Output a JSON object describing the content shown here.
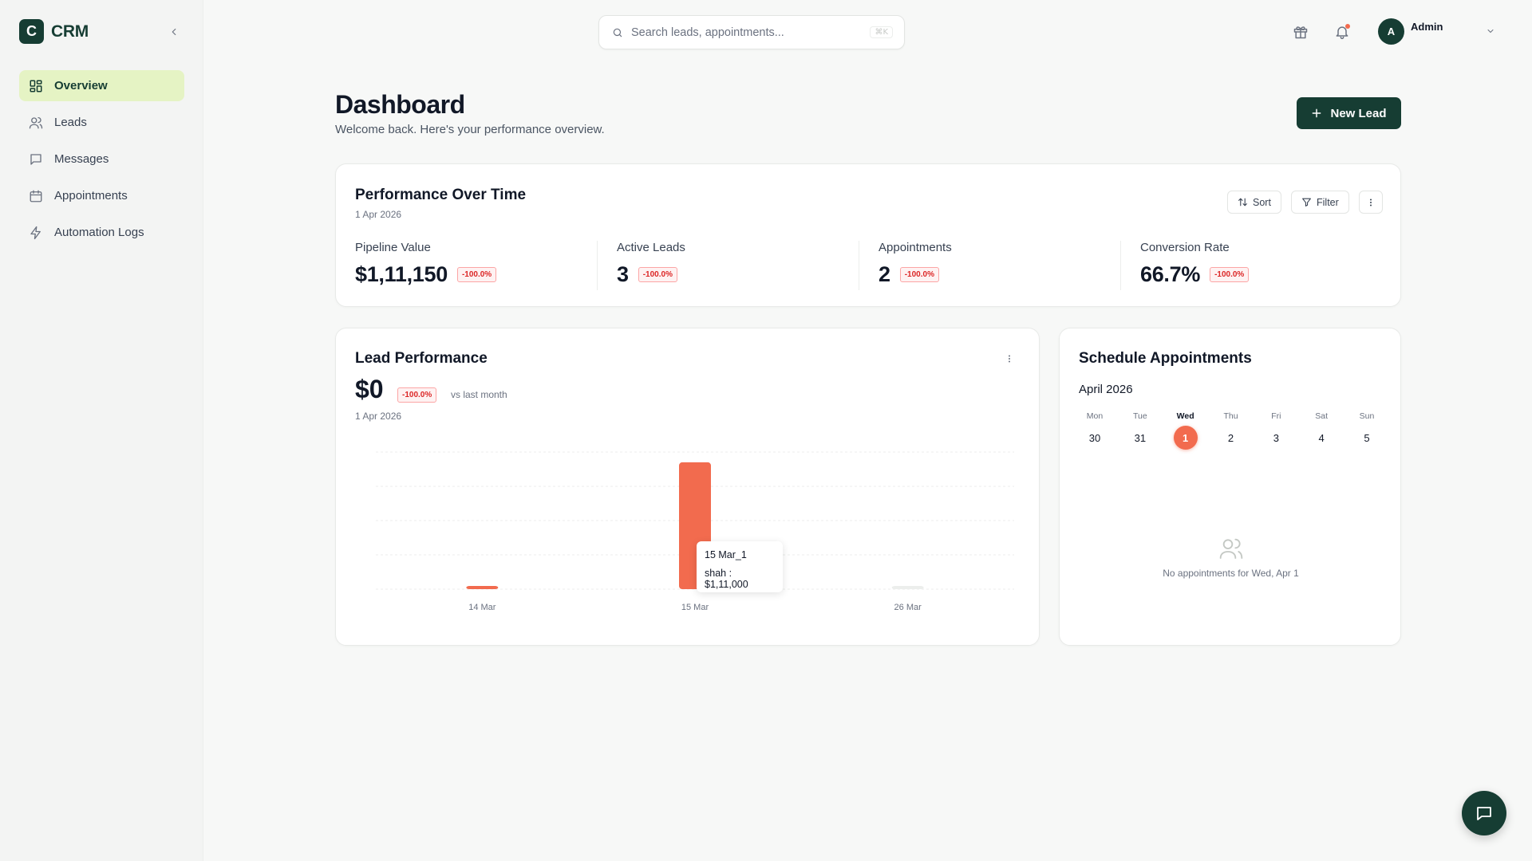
{
  "app": {
    "logo_letter": "C",
    "name": "CRM"
  },
  "sidebar": {
    "items": [
      {
        "label": "Overview",
        "icon": "grid-icon",
        "active": true
      },
      {
        "label": "Leads",
        "icon": "users-icon"
      },
      {
        "label": "Messages",
        "icon": "message-icon"
      },
      {
        "label": "Appointments",
        "icon": "calendar-icon"
      },
      {
        "label": "Automation Logs",
        "icon": "bolt-icon"
      }
    ]
  },
  "search": {
    "placeholder": "Search leads, appointments...",
    "shortcut": "⌘K"
  },
  "user": {
    "initial": "A",
    "name": "Admin"
  },
  "header": {
    "title": "Dashboard",
    "subtitle": "Welcome back. Here's your performance overview.",
    "new_lead_label": "New Lead"
  },
  "performance": {
    "title": "Performance Over Time",
    "date": "1 Apr 2026",
    "sort_label": "Sort",
    "filter_label": "Filter",
    "metrics": [
      {
        "label": "Pipeline Value",
        "value": "$1,11,150",
        "delta": "-100.0%"
      },
      {
        "label": "Active Leads",
        "value": "3",
        "delta": "-100.0%"
      },
      {
        "label": "Appointments",
        "value": "2",
        "delta": "-100.0%"
      },
      {
        "label": "Conversion Rate",
        "value": "66.7%",
        "delta": "-100.0%"
      }
    ]
  },
  "lead_performance": {
    "title": "Lead Performance",
    "value": "$0",
    "delta": "-100.0%",
    "vs": "vs last month",
    "date": "1 Apr 2026",
    "tooltip": {
      "title": "15 Mar_1",
      "line": "shah : $1,11,000"
    }
  },
  "chart_data": {
    "type": "bar",
    "categories": [
      "14 Mar",
      "15 Mar",
      "26 Mar"
    ],
    "series": [
      {
        "name": "shah",
        "values": [
          0,
          111000,
          0
        ]
      }
    ],
    "bar_colors": [
      "#f26b4e",
      "#f26b4e",
      "#eceeec"
    ],
    "ylim": [
      0,
      120000
    ],
    "grid": true
  },
  "schedule": {
    "title": "Schedule Appointments",
    "month": "April 2026",
    "days": [
      {
        "name": "Mon",
        "num": "30"
      },
      {
        "name": "Tue",
        "num": "31"
      },
      {
        "name": "Wed",
        "num": "1",
        "current": true
      },
      {
        "name": "Thu",
        "num": "2"
      },
      {
        "name": "Fri",
        "num": "3"
      },
      {
        "name": "Sat",
        "num": "4"
      },
      {
        "name": "Sun",
        "num": "5"
      }
    ],
    "empty_text": "No appointments for Wed, Apr 1"
  },
  "colors": {
    "brand": "#163d33",
    "accent": "#f26b4e",
    "active_nav": "#e5f3c4",
    "negative": "#dc2626"
  }
}
